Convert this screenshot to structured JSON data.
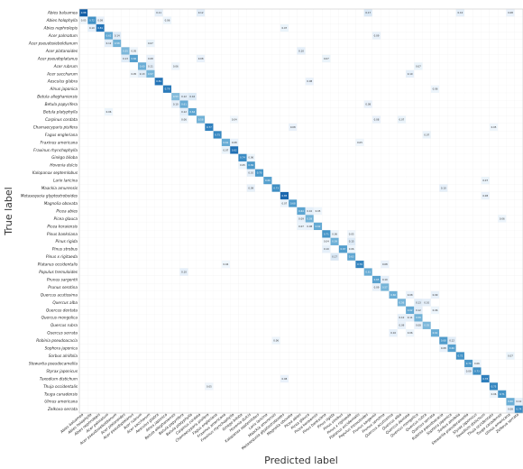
{
  "chart_data": {
    "type": "heatmap",
    "subtype": "confusion_matrix",
    "xlabel": "Predicted label",
    "ylabel": "True label",
    "colormap": "Blues",
    "colors": {
      "low": "#ffffff",
      "mid": "#6baed6",
      "high": "#08306b",
      "grid": "#d9d9d9"
    },
    "value_range": [
      0,
      1
    ],
    "grid": true,
    "labels": [
      "Abies balsamea",
      "Abies holophylla",
      "Abies nephrolepis",
      "Acer palmatum",
      "Acer pseudosieboldianum",
      "Acer platanoides",
      "Acer pseudoplatanus",
      "Acer rubrum",
      "Acer saccharum",
      "Aesculus glabra",
      "Alnus japonica",
      "Betula alleghaniensis",
      "Betula papyrifera",
      "Betula platyphylla",
      "Carpinus cordata",
      "Chamaecyparis pisifera",
      "Fagus engleriana",
      "Fraxinus americana",
      "Fraxinus rhynchophylla",
      "Ginkgo biloba",
      "Hovenia dulcis",
      "Kalopanax septemlobus",
      "Larix laricina",
      "Maackia amurensis",
      "Metasequoia glyptostroboides",
      "Magnolia obovata",
      "Picea abies",
      "Picea glauca",
      "Picea koraiensis",
      "Pinus banksiana",
      "Pinus rigida",
      "Pinus strobus",
      "Pinus x rigitaeda",
      "Platanus occidentalis",
      "Populus tremuloides",
      "Prunus sargentii",
      "Prunus serotina",
      "Quercus acutissima",
      "Quercus alba",
      "Quercus dentata",
      "Quercus mongolica",
      "Quercus rubra",
      "Quercus serrata",
      "Robinia pseudoacacia",
      "Sophora japonica",
      "Sorbus alnifolia",
      "Stewartia pseudocamellia",
      "Styrax japonicus",
      "Taxodium distichum",
      "Thuja occidentalis",
      "Tsuga canadensis",
      "Ulmus americana",
      "Zelkova serrata"
    ],
    "diagonal": [
      0.88,
      0.72,
      0.81,
      0.62,
      0.58,
      0.55,
      0.66,
      0.6,
      0.57,
      0.81,
      0.79,
      0.53,
      0.61,
      0.64,
      0.58,
      0.77,
      0.75,
      0.61,
      0.82,
      0.74,
      0.69,
      0.7,
      0.66,
      0.73,
      0.85,
      0.68,
      0.64,
      0.58,
      0.62,
      0.71,
      0.59,
      0.67,
      0.63,
      0.76,
      0.61,
      0.65,
      0.57,
      0.6,
      0.56,
      0.62,
      0.58,
      0.55,
      0.61,
      0.68,
      0.66,
      0.72,
      0.7,
      0.73,
      0.78,
      0.75,
      0.71,
      0.6,
      0.74
    ],
    "off_diagonal": [
      [
        0,
        9,
        0.11
      ],
      [
        0,
        14,
        0.12
      ],
      [
        0,
        34,
        0.17
      ],
      [
        0,
        45,
        0.1
      ],
      [
        0,
        51,
        0.08
      ],
      [
        1,
        0,
        0.05
      ],
      [
        1,
        2,
        0.08
      ],
      [
        1,
        10,
        0.06
      ],
      [
        2,
        1,
        0.1
      ],
      [
        2,
        24,
        0.07
      ],
      [
        3,
        4,
        0.14
      ],
      [
        3,
        35,
        0.09
      ],
      [
        4,
        3,
        0.12
      ],
      [
        4,
        8,
        0.07
      ],
      [
        5,
        6,
        0.05
      ],
      [
        5,
        26,
        0.1
      ],
      [
        6,
        5,
        0.13
      ],
      [
        6,
        8,
        0.08
      ],
      [
        6,
        14,
        0.08
      ],
      [
        6,
        29,
        0.07
      ],
      [
        7,
        8,
        0.11
      ],
      [
        7,
        11,
        0.06
      ],
      [
        7,
        40,
        0.07
      ],
      [
        8,
        7,
        0.13
      ],
      [
        8,
        6,
        0.05
      ],
      [
        8,
        39,
        0.1
      ],
      [
        9,
        27,
        0.08
      ],
      [
        10,
        42,
        0.06
      ],
      [
        11,
        12,
        0.12
      ],
      [
        11,
        13,
        0.16
      ],
      [
        12,
        11,
        0.1
      ],
      [
        12,
        34,
        0.08
      ],
      [
        13,
        12,
        0.12
      ],
      [
        13,
        3,
        0.06
      ],
      [
        14,
        12,
        0.06
      ],
      [
        14,
        18,
        0.04
      ],
      [
        14,
        35,
        0.08
      ],
      [
        14,
        38,
        0.07
      ],
      [
        15,
        25,
        0.08
      ],
      [
        15,
        49,
        0.05
      ],
      [
        16,
        41,
        0.07
      ],
      [
        17,
        18,
        0.08
      ],
      [
        17,
        33,
        0.05
      ],
      [
        18,
        17,
        0.07
      ],
      [
        19,
        20,
        0.06
      ],
      [
        20,
        19,
        0.05
      ],
      [
        21,
        20,
        0.1
      ],
      [
        22,
        48,
        0.07
      ],
      [
        23,
        20,
        0.09
      ],
      [
        23,
        43,
        0.1
      ],
      [
        24,
        48,
        0.08
      ],
      [
        25,
        24,
        0.07
      ],
      [
        26,
        27,
        0.1
      ],
      [
        26,
        28,
        0.05
      ],
      [
        27,
        26,
        0.09
      ],
      [
        27,
        50,
        0.06
      ],
      [
        28,
        27,
        0.08
      ],
      [
        28,
        26,
        0.07
      ],
      [
        29,
        30,
        0.06
      ],
      [
        29,
        32,
        0.05
      ],
      [
        30,
        32,
        0.15
      ],
      [
        30,
        29,
        0.04
      ],
      [
        31,
        29,
        0.1
      ],
      [
        31,
        32,
        0.06
      ],
      [
        32,
        30,
        0.17
      ],
      [
        33,
        36,
        0.08
      ],
      [
        33,
        17,
        0.04
      ],
      [
        34,
        12,
        0.1
      ],
      [
        35,
        36,
        0.1
      ],
      [
        36,
        35,
        0.09
      ],
      [
        37,
        39,
        0.08
      ],
      [
        37,
        42,
        0.09
      ],
      [
        38,
        40,
        0.13
      ],
      [
        38,
        41,
        0.1
      ],
      [
        39,
        40,
        0.12
      ],
      [
        39,
        42,
        0.06
      ],
      [
        40,
        39,
        0.11
      ],
      [
        40,
        38,
        0.1
      ],
      [
        41,
        38,
        0.09
      ],
      [
        41,
        40,
        0.08
      ],
      [
        42,
        37,
        0.1
      ],
      [
        42,
        39,
        0.06
      ],
      [
        43,
        44,
        0.12
      ],
      [
        43,
        23,
        0.06
      ],
      [
        44,
        43,
        0.08
      ],
      [
        45,
        51,
        0.07
      ],
      [
        46,
        47,
        0.06
      ],
      [
        47,
        46,
        0.09
      ],
      [
        48,
        24,
        0.08
      ],
      [
        49,
        15,
        0.05
      ],
      [
        50,
        49,
        0.06
      ],
      [
        51,
        52,
        0.1
      ],
      [
        52,
        51,
        0.08
      ]
    ]
  }
}
